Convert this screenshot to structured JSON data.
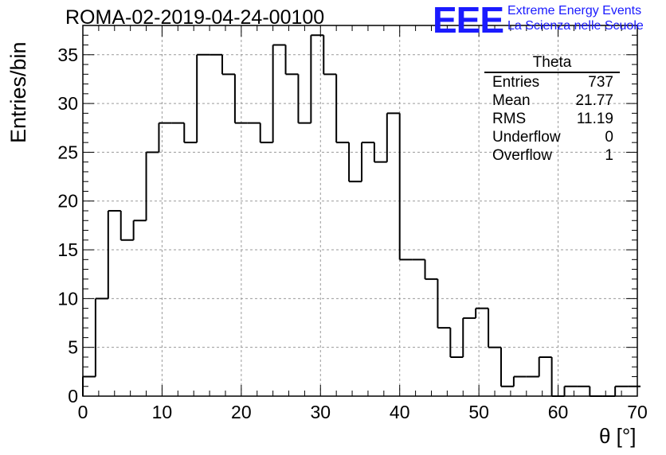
{
  "header": {
    "title": "ROMA-02-2019-04-24-00100",
    "logo": "EEE",
    "logo_line1": "Extreme Energy Events",
    "logo_line2": "La Scienza nelle Scuole"
  },
  "stats": {
    "title": "Theta",
    "rows": [
      {
        "label": "Entries",
        "value": "737"
      },
      {
        "label": "Mean",
        "value": "21.77"
      },
      {
        "label": "RMS",
        "value": "11.19"
      },
      {
        "label": "Underflow",
        "value": "0"
      },
      {
        "label": "Overflow",
        "value": "1"
      }
    ]
  },
  "chart_data": {
    "type": "bar",
    "style": "step-histogram",
    "xlabel": "θ [°]",
    "ylabel": "Entries/bin",
    "xlim": [
      0,
      70
    ],
    "ylim": [
      0,
      38
    ],
    "grid": true,
    "bin_width": 1.6,
    "x_ticks": [
      0,
      10,
      20,
      30,
      40,
      50,
      60,
      70
    ],
    "y_ticks": [
      0,
      5,
      10,
      15,
      20,
      25,
      30,
      35
    ],
    "bin_edges": [
      0,
      1.6,
      3.2,
      4.8,
      6.4,
      8.0,
      9.6,
      11.2,
      12.8,
      14.4,
      16.0,
      17.6,
      19.2,
      20.8,
      22.4,
      24.0,
      25.6,
      27.2,
      28.8,
      30.4,
      32.0,
      33.6,
      35.2,
      36.8,
      38.4,
      40.0,
      41.6,
      43.2,
      44.8,
      46.4,
      48.0,
      49.6,
      51.2,
      52.8,
      54.4,
      56.0,
      57.6,
      59.2,
      60.8,
      62.4,
      64.0,
      65.6,
      67.2,
      68.8
    ],
    "values": [
      2,
      10,
      19,
      16,
      18,
      25,
      28,
      28,
      26,
      35,
      35,
      33,
      28,
      28,
      26,
      36,
      33,
      28,
      37,
      33,
      26,
      22,
      26,
      24,
      29,
      14,
      14,
      12,
      7,
      4,
      8,
      9,
      5,
      1,
      2,
      2,
      4,
      0,
      1,
      1,
      0,
      0,
      1,
      1
    ]
  }
}
